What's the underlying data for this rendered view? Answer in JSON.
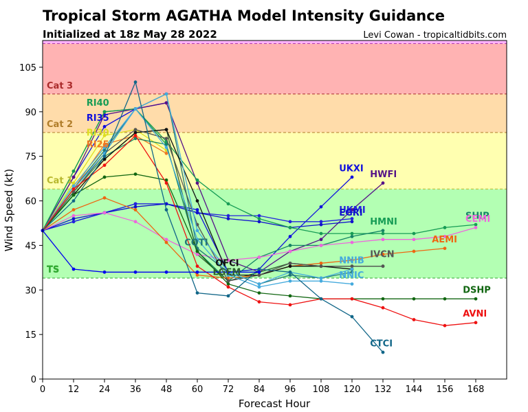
{
  "header": {
    "title": "Tropical Storm AGATHA Model Intensity Guidance",
    "subtitle": "Initialized at 18z May 28 2022",
    "credit": "Levi Cowan - tropicaltidbits.com"
  },
  "chart_data": {
    "type": "line",
    "xlabel": "Forecast Hour",
    "ylabel": "Wind Speed (kt)",
    "xlim": [
      0,
      180
    ],
    "ylim": [
      0,
      114
    ],
    "xticks": [
      0,
      12,
      24,
      36,
      48,
      60,
      72,
      84,
      96,
      108,
      120,
      132,
      144,
      156,
      168
    ],
    "yticks": [
      0,
      15,
      30,
      45,
      60,
      75,
      90,
      105
    ],
    "grid": false,
    "legend": "none",
    "categories": [
      {
        "name": "TS",
        "from": 34,
        "to": 64,
        "color": "#b3ffb3",
        "label_color": "#33aa33",
        "line_y": 34
      },
      {
        "name": "Cat 1",
        "from": 64,
        "to": 83,
        "color": "#ffffb0",
        "label_color": "#b8b82e",
        "line_y": 64
      },
      {
        "name": "Cat 2",
        "from": 83,
        "to": 96,
        "color": "#ffdcaa",
        "label_color": "#b07d2a",
        "line_y": 83
      },
      {
        "name": "Cat 3",
        "from": 96,
        "to": 113,
        "color": "#ffb3b3",
        "label_color": "#aa2b2b",
        "line_y": 96
      },
      {
        "name": "",
        "from": 113,
        "to": 114,
        "color": "#ffb3ff",
        "label_color": "#aa33aa",
        "line_y": 113
      }
    ],
    "series": [
      {
        "name": "RI40",
        "color": "#169c55",
        "x": [
          0,
          12,
          24,
          36,
          48
        ],
        "y": [
          50,
          70,
          90,
          91,
          79
        ],
        "label_x": 17,
        "label_y": 92
      },
      {
        "name": "RI35",
        "color": "#1111dd",
        "x": [
          0,
          12,
          24,
          36,
          48
        ],
        "y": [
          50,
          68,
          85,
          91,
          93
        ],
        "label_x": 17,
        "label_y": 87
      },
      {
        "name": "RI30",
        "color": "#dddd22",
        "x": [
          0,
          12,
          24,
          36,
          48
        ],
        "y": [
          50,
          66,
          82,
          84,
          77
        ],
        "label_x": 17,
        "label_y": 82
      },
      {
        "name": "RI25",
        "color": "#ee7722",
        "x": [
          0,
          12,
          24,
          36,
          48
        ],
        "y": [
          50,
          64,
          79,
          82,
          76
        ],
        "label_x": 17,
        "label_y": 78
      },
      {
        "name": "UKXI",
        "color": "#1111dd",
        "x": [
          0,
          12,
          24,
          36,
          48,
          60,
          72,
          84,
          96,
          108,
          120
        ],
        "y": [
          50,
          53,
          56,
          59,
          59,
          57,
          36,
          37,
          48,
          58,
          68
        ],
        "label_x": 115,
        "label_y": 70
      },
      {
        "name": "HWFI",
        "color": "#551188",
        "x": [
          0,
          12,
          24,
          36,
          48,
          60,
          72,
          84,
          96,
          108,
          120,
          132
        ],
        "y": [
          50,
          68,
          89,
          91,
          93,
          66,
          40,
          36,
          43,
          47,
          57,
          66
        ],
        "label_x": 127,
        "label_y": 68
      },
      {
        "name": "UKMI",
        "color": "#2222dd",
        "x": [
          0,
          12,
          24,
          36,
          48,
          60,
          72,
          84,
          96,
          108,
          120
        ],
        "y": [
          50,
          53,
          56,
          59,
          59,
          56,
          55,
          55,
          53,
          53,
          54
        ],
        "label_x": 115,
        "label_y": 56
      },
      {
        "name": "EGRI",
        "color": "#1111cc",
        "x": [
          0,
          12,
          24,
          36,
          48,
          60,
          72,
          84,
          96,
          108,
          120
        ],
        "y": [
          50,
          54,
          56,
          58,
          59,
          56,
          54,
          53,
          51,
          52,
          53
        ],
        "label_x": 115,
        "label_y": 55
      },
      {
        "name": "HMNI",
        "color": "#169c55",
        "x": [
          0,
          12,
          24,
          36,
          48,
          60,
          72,
          84,
          96,
          108,
          120,
          132,
          144,
          156,
          168
        ],
        "y": [
          50,
          70,
          90,
          91,
          80,
          67,
          59,
          54,
          51,
          49,
          49,
          49,
          49,
          51,
          52
        ],
        "label_x": 127,
        "label_y": 52
      },
      {
        "name": "SHIP",
        "color": "#158466",
        "x": [
          0,
          12,
          24,
          36,
          48,
          60,
          72,
          84,
          96,
          108,
          120,
          132
        ],
        "y": [
          50,
          63,
          75,
          81,
          79,
          43,
          33,
          41,
          45,
          45,
          48,
          50
        ],
        "label_x": 164,
        "label_y": 54
      },
      {
        "name": "LGEM",
        "color": "#2f5f2f",
        "x": [
          0,
          12,
          24,
          36,
          48,
          60,
          72,
          84,
          96,
          108,
          120,
          132
        ],
        "y": [
          50,
          62,
          74,
          83,
          84,
          42,
          33,
          36,
          39,
          38,
          38,
          38
        ],
        "label_x": 66,
        "label_y": 35
      },
      {
        "name": "CEMI",
        "color": "#ee66dd",
        "x": [
          0,
          12,
          24,
          36,
          48,
          60,
          72,
          84,
          96,
          108,
          120,
          132,
          144,
          156,
          168
        ],
        "y": [
          50,
          55,
          56,
          53,
          47,
          42,
          40,
          41,
          43,
          45,
          46,
          47,
          47,
          48,
          51
        ],
        "label_x": 164,
        "label_y": 53
      },
      {
        "name": "AEMI",
        "color": "#ee6611",
        "x": [
          0,
          12,
          24,
          36,
          48,
          60,
          72,
          84,
          96,
          108,
          120,
          132,
          144,
          156
        ],
        "y": [
          50,
          57,
          61,
          57,
          46,
          35,
          34,
          35,
          38,
          39,
          40,
          42,
          43,
          44
        ],
        "label_x": 151,
        "label_y": 46
      },
      {
        "name": "COTI",
        "color": "#227777",
        "x": [
          0,
          12,
          24,
          36,
          48,
          60,
          72,
          84,
          96,
          108,
          120
        ],
        "y": [
          50,
          64,
          77,
          91,
          96,
          44,
          36,
          32,
          35,
          34,
          36
        ],
        "label_x": 55,
        "label_y": 45
      },
      {
        "name": "OFCI",
        "color": "#111111",
        "x": [
          0,
          12,
          24,
          36,
          48,
          60,
          72,
          84,
          96,
          108,
          120
        ],
        "y": [
          50,
          62,
          74,
          83,
          84,
          60,
          35,
          35,
          38,
          38,
          37
        ],
        "label_x": 67,
        "label_y": 38
      },
      {
        "name": "IVCN",
        "color": "#555555",
        "x": [
          0,
          12,
          24,
          36,
          48,
          60,
          72,
          84,
          96,
          108,
          120,
          132
        ],
        "y": [
          50,
          63,
          76,
          84,
          81,
          52,
          33,
          35,
          39,
          38,
          38,
          38
        ],
        "label_x": 127,
        "label_y": 41
      },
      {
        "name": "NNIB",
        "color": "#44aadd",
        "x": [
          0,
          12,
          24,
          36,
          48,
          60,
          72,
          84,
          96,
          108,
          120
        ],
        "y": [
          50,
          65,
          78,
          91,
          96,
          50,
          36,
          32,
          36,
          34,
          37
        ],
        "label_x": 115,
        "label_y": 39
      },
      {
        "name": "NNIC",
        "color": "#44aadd",
        "x": [
          0,
          12,
          24,
          36,
          48,
          60,
          72,
          84,
          96,
          108,
          120
        ],
        "y": [
          50,
          64,
          76,
          91,
          78,
          47,
          35,
          31,
          33,
          33,
          32
        ],
        "label_x": 115,
        "label_y": 34
      },
      {
        "name": "DSHP",
        "color": "#116611",
        "x": [
          0,
          12,
          24,
          36,
          48,
          60,
          72,
          84,
          96,
          108,
          120,
          132,
          144,
          156,
          168
        ],
        "y": [
          50,
          62,
          68,
          69,
          67,
          43,
          32,
          29,
          28,
          27,
          27,
          27,
          27,
          27,
          27
        ],
        "label_x": 163,
        "label_y": 29
      },
      {
        "name": "AVNI",
        "color": "#ee1111",
        "x": [
          0,
          12,
          24,
          36,
          48,
          60,
          72,
          84,
          96,
          108,
          120,
          132,
          144,
          156,
          168
        ],
        "y": [
          50,
          64,
          72,
          82,
          66,
          38,
          31,
          26,
          25,
          27,
          27,
          24,
          20,
          18,
          19
        ],
        "label_x": 163,
        "label_y": 21
      },
      {
        "name": "CTCI",
        "color": "#116688",
        "x": [
          0,
          12,
          24,
          36,
          48,
          60,
          72,
          84,
          96,
          108,
          120,
          132
        ],
        "y": [
          50,
          60,
          75,
          100,
          57,
          29,
          28,
          37,
          36,
          27,
          21,
          9
        ],
        "label_x": 127,
        "label_y": 11
      },
      {
        "name": "TS",
        "color": "#0000ee",
        "x": [
          0,
          12,
          24,
          36,
          48,
          60,
          72,
          84
        ],
        "y": [
          50,
          37,
          36,
          36,
          36,
          36,
          36,
          36
        ],
        "label_x": 0,
        "label_y": 0
      }
    ]
  }
}
